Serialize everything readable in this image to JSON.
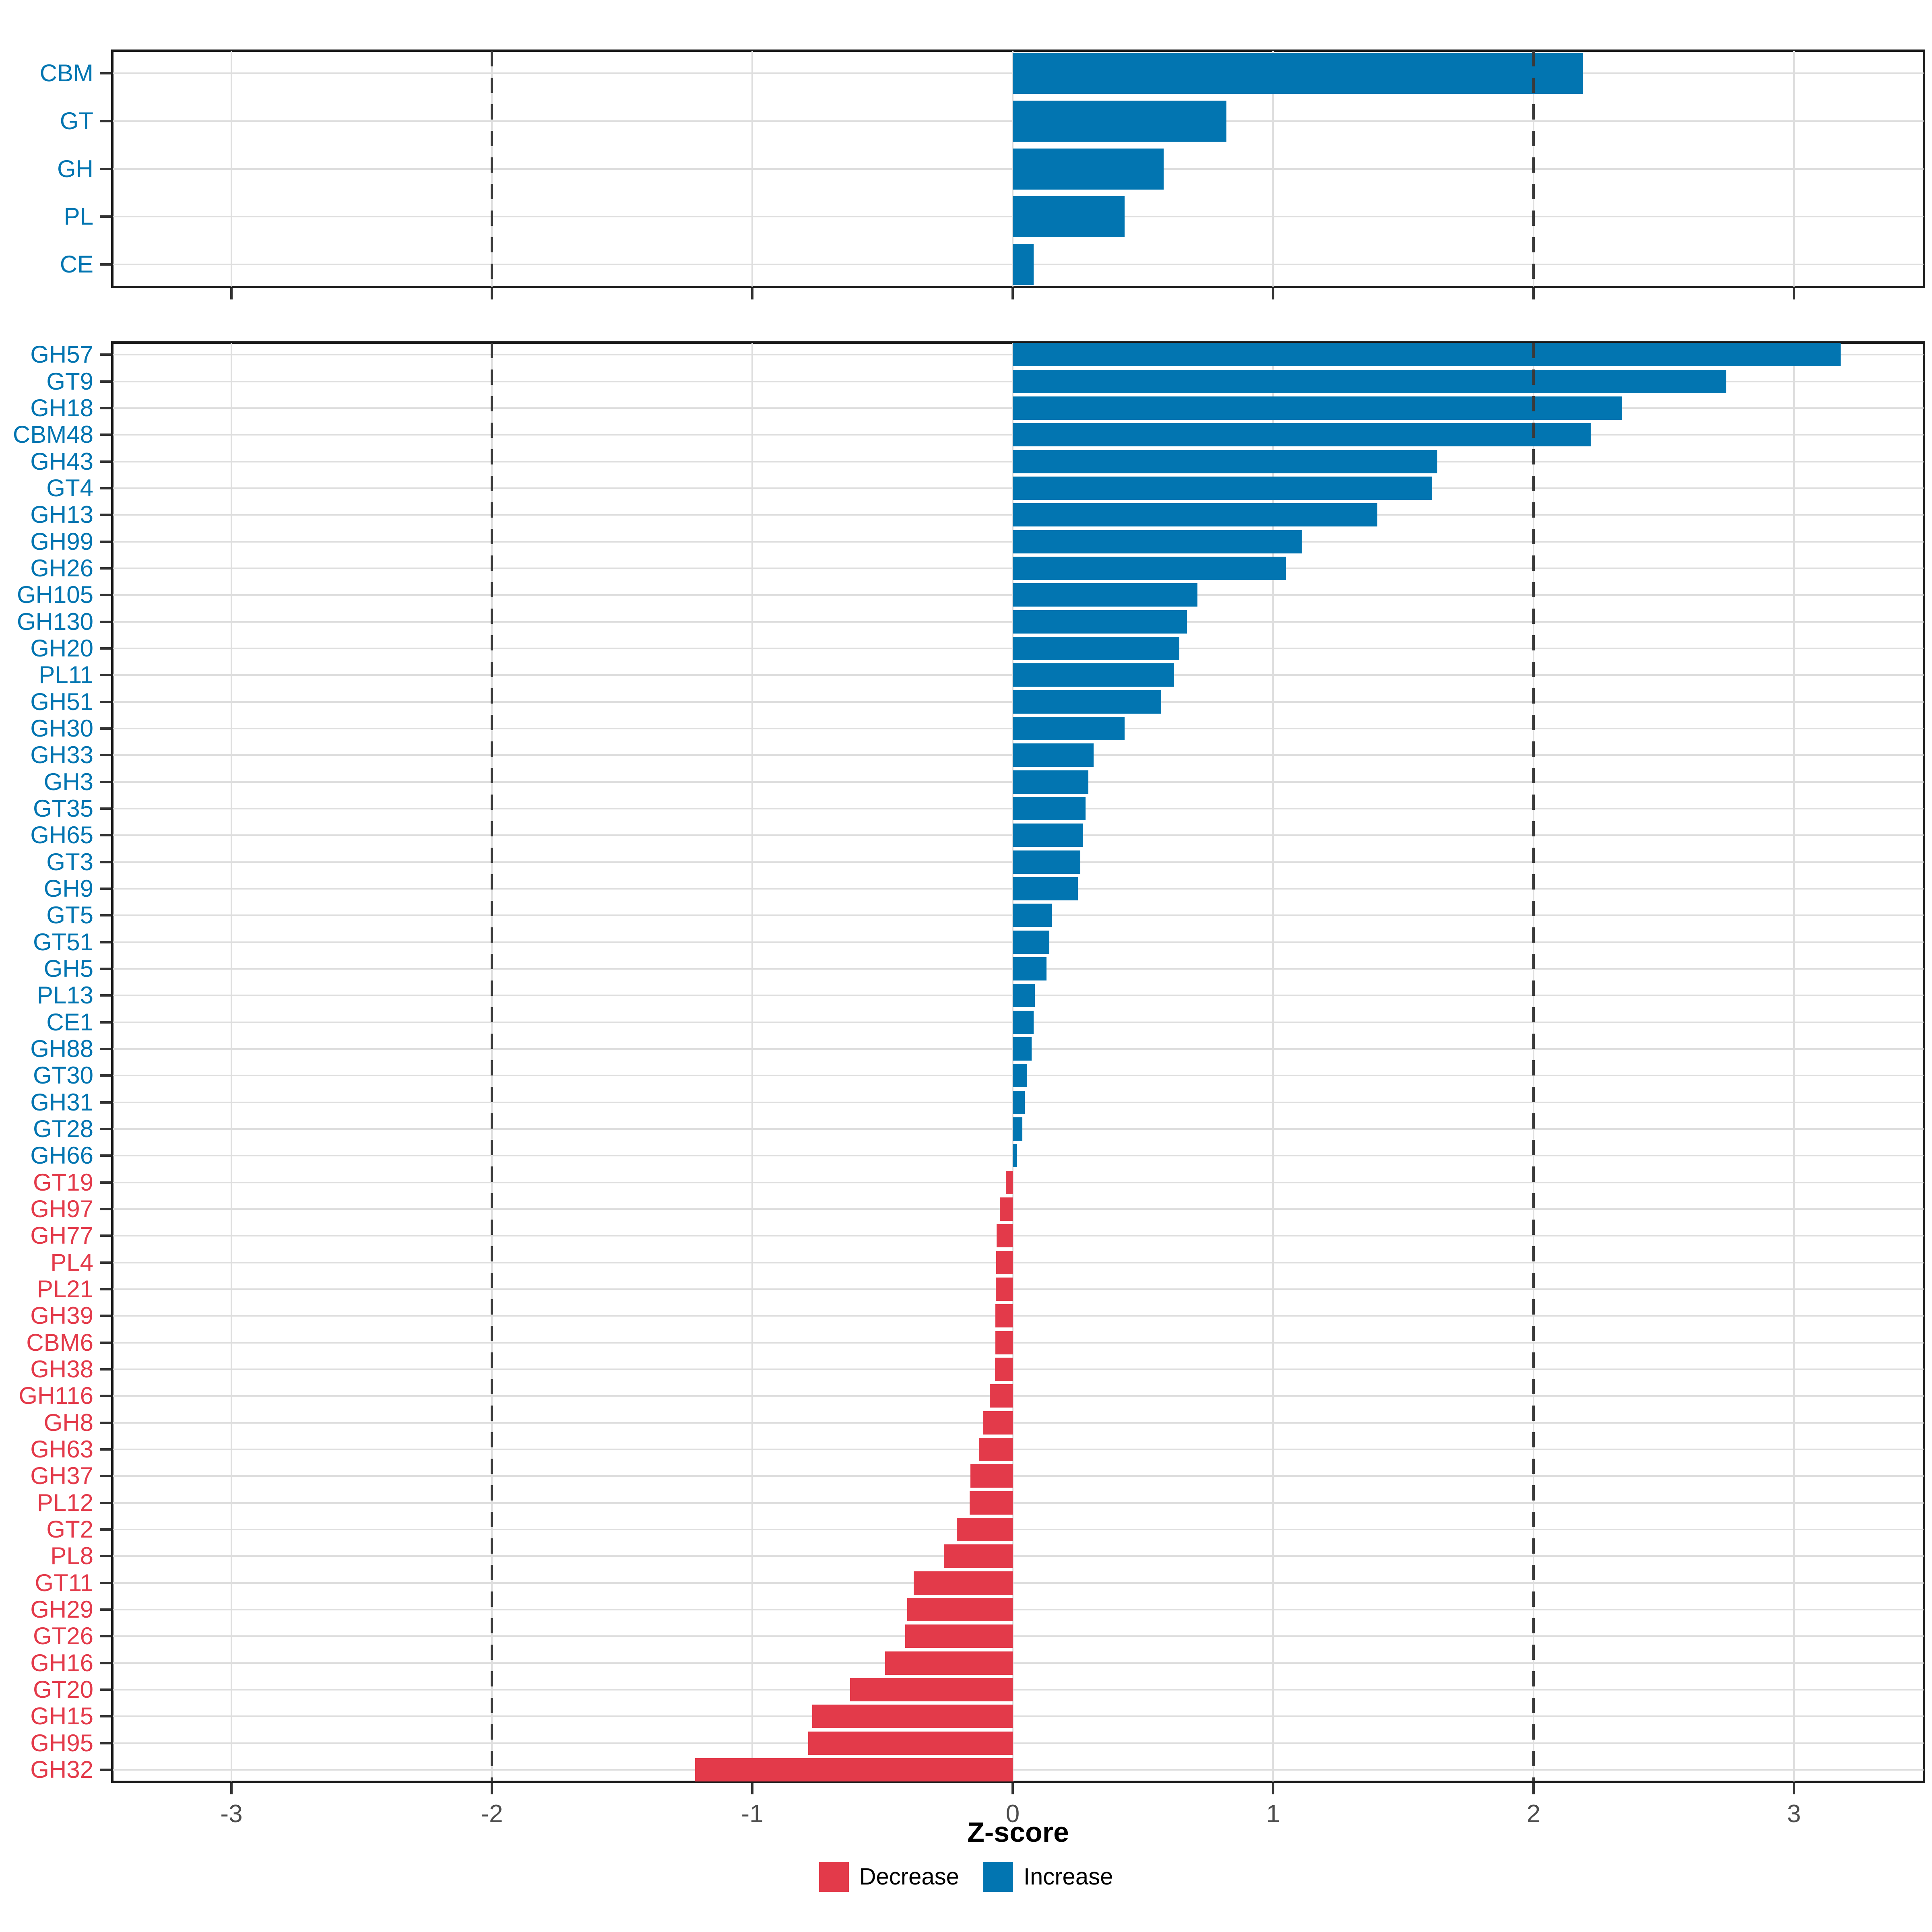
{
  "axis": {
    "title": "Z-score",
    "ticks": [
      "-3",
      "-2",
      "-1",
      "0",
      "1",
      "2",
      "3"
    ],
    "tick_values": [
      -3,
      -2,
      -1,
      0,
      1,
      2,
      3
    ],
    "dashed_lines": [
      -2,
      2
    ],
    "xlim": [
      -3.46,
      3.5
    ]
  },
  "legend": {
    "items": [
      {
        "label": "Decrease",
        "color": "#e33a4a"
      },
      {
        "label": "Increase",
        "color": "#0275b1"
      }
    ]
  },
  "colors": {
    "increase": "#0275b1",
    "decrease": "#e33a4a",
    "grid": "#dedede",
    "dashed": "#3a3a3a",
    "tick_label": "#4d4d4d",
    "panel_border": "#1a1a1a"
  },
  "chart_data": [
    {
      "type": "bar",
      "orientation": "horizontal",
      "panel": "families",
      "title": "",
      "xlabel": "Z-score",
      "legend_position": "bottom",
      "grid": true,
      "categories": [
        "CBM",
        "GT",
        "GH",
        "PL",
        "CE"
      ],
      "values": [
        2.19,
        0.82,
        0.58,
        0.43,
        0.08
      ],
      "groups": [
        "Increase",
        "Increase",
        "Increase",
        "Increase",
        "Increase"
      ]
    },
    {
      "type": "bar",
      "orientation": "horizontal",
      "panel": "subfamilies",
      "title": "",
      "xlabel": "Z-score",
      "legend_position": "bottom",
      "grid": true,
      "categories": [
        "GH57",
        "GT9",
        "GH18",
        "CBM48",
        "GH43",
        "GT4",
        "GH13",
        "GH99",
        "GH26",
        "GH105",
        "GH130",
        "GH20",
        "PL11",
        "GH51",
        "GH30",
        "GH33",
        "GH3",
        "GT35",
        "GH65",
        "GT3",
        "GH9",
        "GT5",
        "GT51",
        "GH5",
        "PL13",
        "CE1",
        "GH88",
        "GT30",
        "GH31",
        "GT28",
        "GH66",
        "GT19",
        "GH97",
        "GH77",
        "PL4",
        "PL21",
        "GH39",
        "CBM6",
        "GH38",
        "GH116",
        "GH8",
        "GH63",
        "GH37",
        "PL12",
        "GT2",
        "PL8",
        "GT11",
        "GH29",
        "GT26",
        "GH16",
        "GT20",
        "GH15",
        "GH95",
        "GH32"
      ],
      "values": [
        3.18,
        2.74,
        2.34,
        2.22,
        1.63,
        1.61,
        1.4,
        1.11,
        1.05,
        0.71,
        0.67,
        0.64,
        0.62,
        0.57,
        0.43,
        0.31,
        0.29,
        0.28,
        0.27,
        0.26,
        0.25,
        0.15,
        0.14,
        0.13,
        0.085,
        0.08,
        0.072,
        0.055,
        0.047,
        0.037,
        0.015,
        -0.026,
        -0.05,
        -0.062,
        -0.064,
        -0.065,
        -0.066,
        -0.067,
        -0.068,
        -0.088,
        -0.113,
        -0.13,
        -0.163,
        -0.166,
        -0.215,
        -0.265,
        -0.38,
        -0.405,
        -0.413,
        -0.49,
        -0.625,
        -0.77,
        -0.785,
        -1.22
      ],
      "groups": [
        "Increase",
        "Increase",
        "Increase",
        "Increase",
        "Increase",
        "Increase",
        "Increase",
        "Increase",
        "Increase",
        "Increase",
        "Increase",
        "Increase",
        "Increase",
        "Increase",
        "Increase",
        "Increase",
        "Increase",
        "Increase",
        "Increase",
        "Increase",
        "Increase",
        "Increase",
        "Increase",
        "Increase",
        "Increase",
        "Increase",
        "Increase",
        "Increase",
        "Increase",
        "Increase",
        "Increase",
        "Decrease",
        "Decrease",
        "Decrease",
        "Decrease",
        "Decrease",
        "Decrease",
        "Decrease",
        "Decrease",
        "Decrease",
        "Decrease",
        "Decrease",
        "Decrease",
        "Decrease",
        "Decrease",
        "Decrease",
        "Decrease",
        "Decrease",
        "Decrease",
        "Decrease",
        "Decrease",
        "Decrease",
        "Decrease",
        "Decrease"
      ]
    }
  ]
}
